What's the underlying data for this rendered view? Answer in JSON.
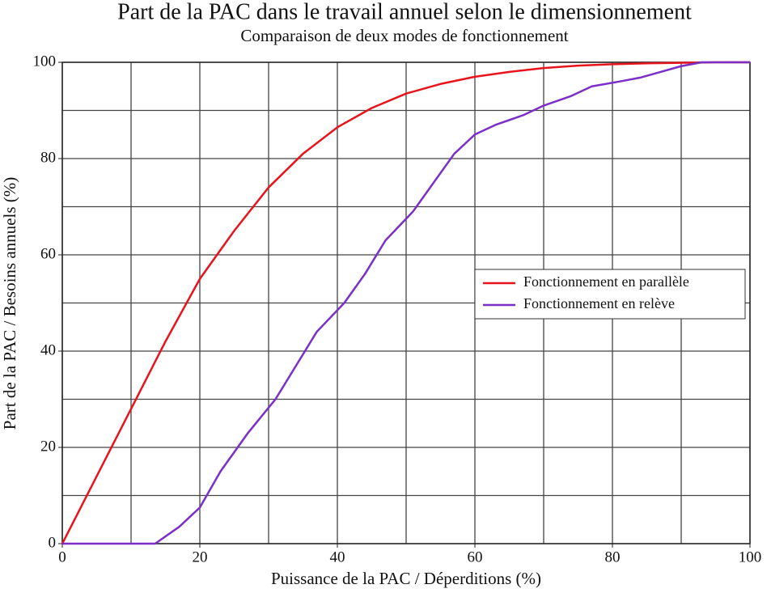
{
  "chart_data": {
    "type": "line",
    "title": "Part de la PAC dans le travail annuel selon le dimensionnement",
    "subtitle": "Comparaison de deux modes de fonctionnement",
    "xlabel": "Puissance de la PAC / Déperditions (%)",
    "ylabel": "Part de la PAC / Besoins annuels (%)",
    "xlim": [
      0,
      100
    ],
    "ylim": [
      0,
      100
    ],
    "xticks": [
      0,
      20,
      40,
      60,
      80,
      100
    ],
    "yticks": [
      0,
      20,
      40,
      60,
      80,
      100
    ],
    "xgrid": [
      0,
      10,
      20,
      30,
      40,
      50,
      60,
      70,
      80,
      90,
      100
    ],
    "ygrid": [
      0,
      10,
      20,
      30,
      40,
      50,
      60,
      70,
      80,
      90,
      100
    ],
    "grid": true,
    "legend": "right",
    "series": [
      {
        "name": "Fonctionnement en parallèle",
        "color": "#e8141c",
        "x": [
          0,
          5,
          10,
          15,
          20,
          25,
          30,
          35,
          40,
          45,
          50,
          55,
          60,
          65,
          70,
          75,
          80,
          85,
          90,
          95,
          100
        ],
        "values": [
          0,
          14,
          28,
          42,
          55,
          65,
          74,
          81,
          86.5,
          90.5,
          93.5,
          95.5,
          97,
          98,
          98.8,
          99.3,
          99.6,
          99.8,
          99.9,
          100,
          100
        ]
      },
      {
        "name": "Fonctionnement en relève",
        "color": "#7b2fc8",
        "x": [
          0,
          10,
          13.5,
          17,
          20,
          23,
          27,
          31,
          34,
          37,
          41,
          44,
          47,
          51,
          54,
          57,
          60,
          63,
          67,
          70,
          74,
          77,
          81,
          84,
          87,
          90,
          93,
          97,
          100
        ],
        "values": [
          0,
          0,
          0,
          3.5,
          7.5,
          15,
          23,
          30,
          37,
          44,
          50,
          56,
          63,
          69,
          75,
          81,
          85,
          87,
          89,
          91,
          93,
          95,
          96,
          96.8,
          98,
          99.2,
          100,
          100,
          100
        ]
      }
    ]
  }
}
